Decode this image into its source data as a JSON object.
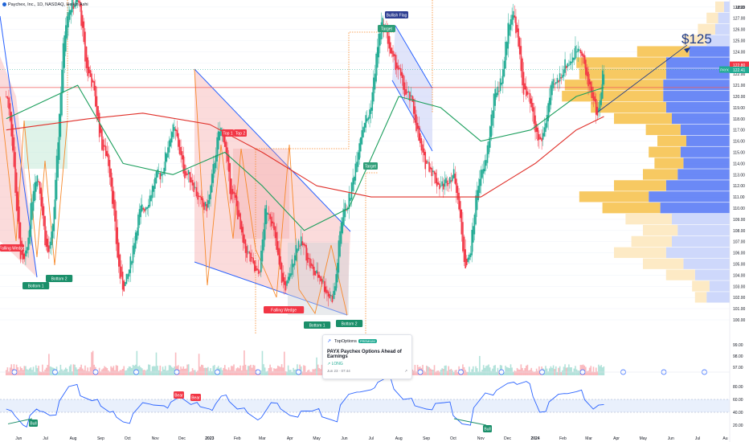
{
  "header": {
    "symbol_title": "Paychex, Inc., 1D, NASDAQ, Heikin Ashi"
  },
  "currency": "USD",
  "price_axis": {
    "labels": [
      "128.00",
      "127.00",
      "126.00",
      "125.00",
      "124.00",
      "123.00",
      "122.00",
      "121.00",
      "120.00",
      "119.00",
      "118.00",
      "117.00",
      "116.00",
      "115.00",
      "114.00",
      "113.00",
      "112.00",
      "111.00",
      "110.00",
      "109.00",
      "108.00",
      "107.00",
      "106.00",
      "105.00",
      "104.00",
      "103.00",
      "102.00",
      "101.00",
      "100.00"
    ],
    "rsi_labels": [
      "99.00",
      "98.00",
      "97.00"
    ],
    "osc_labels": [
      "80.00",
      "60.00",
      "40.00",
      "20.00"
    ],
    "last_price_tag": "122.41",
    "symbol_tag": "PAYX",
    "high_tag": "122.80"
  },
  "time_axis": [
    "Jun",
    "Jul",
    "Aug",
    "Sep",
    "Oct",
    "Nov",
    "Dec",
    "2023",
    "Feb",
    "Mar",
    "Apr",
    "May",
    "Jun",
    "Jul",
    "Aug",
    "Sep",
    "Oct",
    "Nov",
    "Dec",
    "2024",
    "Feb",
    "Mar",
    "Apr",
    "May",
    "Jun",
    "Jul",
    "Au"
  ],
  "annotations": {
    "target_price": "$125",
    "falling_wedge_left": "Falling Wedge",
    "falling_wedge_center": "Falling Wedge",
    "bottom1_left": "Bottom 1",
    "bottom2_left": "Bottom 2",
    "top1": "Top 1",
    "top2": "Top 2",
    "bottom1_center": "Bottom 1",
    "bottom2_center": "Bottom 2",
    "target_top": "Target",
    "target_mid": "Target",
    "bullish_flag": "Bullish Flag",
    "osc_bull_left": "Bull",
    "osc_bear_1": "Bear",
    "osc_bear_2": "Bear",
    "osc_bull_right": "Bull"
  },
  "idea_card": {
    "brand": "TopOptions",
    "badge": "PREMIUM",
    "title": "PAYX Paychex Options Ahead of Earnings",
    "direction": "LONG",
    "date": "Jun 23",
    "time": "07:44"
  },
  "colors": {
    "bull": "#22ab94",
    "bear": "#f23645",
    "ma_green": "#1b9e5c",
    "ma_red": "#e0312b",
    "wedge_blue": "#2962ff",
    "zigzag": "#f7892b",
    "vp_up": "#f7c65a",
    "vp_down": "#5b7cf5",
    "rsi_line": "#2962ff"
  },
  "chart_data": {
    "type": "candlestick",
    "title": "Paychex, Inc., 1D, NASDAQ, Heikin Ashi",
    "y_range": [
      100,
      129
    ],
    "last_price": 122.41,
    "target": 125,
    "waypoints": [
      [
        "2022-06-01",
        120
      ],
      [
        "2022-06-20",
        105
      ],
      [
        "2022-07-05",
        113
      ],
      [
        "2022-07-18",
        106
      ],
      [
        "2022-08-10",
        128
      ],
      [
        "2022-08-20",
        128.5
      ],
      [
        "2022-09-01",
        122
      ],
      [
        "2022-09-20",
        115
      ],
      [
        "2022-10-10",
        103
      ],
      [
        "2022-11-01",
        110
      ],
      [
        "2022-11-20",
        113
      ],
      [
        "2022-12-05",
        117
      ],
      [
        "2022-12-20",
        113
      ],
      [
        "2023-01-10",
        110
      ],
      [
        "2023-01-28",
        117
      ],
      [
        "2023-02-10",
        111
      ],
      [
        "2023-02-25",
        106
      ],
      [
        "2023-03-10",
        104
      ],
      [
        "2023-03-20",
        110
      ],
      [
        "2023-04-10",
        103
      ],
      [
        "2023-04-25",
        107
      ],
      [
        "2023-05-15",
        104
      ],
      [
        "2023-06-01",
        102
      ],
      [
        "2023-06-15",
        110
      ],
      [
        "2023-07-10",
        118
      ],
      [
        "2023-07-28",
        126.5
      ],
      [
        "2023-08-10",
        123
      ],
      [
        "2023-08-25",
        120
      ],
      [
        "2023-09-15",
        114
      ],
      [
        "2023-10-01",
        112
      ],
      [
        "2023-10-15",
        113
      ],
      [
        "2023-10-30",
        105
      ],
      [
        "2023-11-15",
        113
      ],
      [
        "2023-12-05",
        121
      ],
      [
        "2023-12-20",
        127.5
      ],
      [
        "2024-01-05",
        120
      ],
      [
        "2024-01-20",
        116
      ],
      [
        "2024-02-05",
        121
      ],
      [
        "2024-02-20",
        123
      ],
      [
        "2024-03-05",
        124.5
      ],
      [
        "2024-03-15",
        121
      ],
      [
        "2024-03-25",
        118.5
      ],
      [
        "2024-04-01",
        122.4
      ]
    ],
    "moving_averages": [
      {
        "color": "green",
        "points": [
          [
            "2022-06-01",
            118
          ],
          [
            "2022-08-20",
            121
          ],
          [
            "2022-10-10",
            114
          ],
          [
            "2022-12-05",
            113
          ],
          [
            "2023-02-01",
            115
          ],
          [
            "2023-03-15",
            112
          ],
          [
            "2023-05-01",
            108
          ],
          [
            "2023-06-20",
            110
          ],
          [
            "2023-08-15",
            120
          ],
          [
            "2023-10-01",
            119
          ],
          [
            "2023-11-15",
            116
          ],
          [
            "2024-01-10",
            117
          ],
          [
            "2024-03-01",
            120
          ],
          [
            "2024-04-01",
            120.8
          ]
        ]
      },
      {
        "color": "red",
        "points": [
          [
            "2022-06-01",
            117
          ],
          [
            "2022-09-01",
            118
          ],
          [
            "2022-11-01",
            118.5
          ],
          [
            "2023-01-15",
            117.5
          ],
          [
            "2023-03-15",
            115
          ],
          [
            "2023-05-15",
            112
          ],
          [
            "2023-07-15",
            111
          ],
          [
            "2023-09-15",
            111
          ],
          [
            "2023-11-15",
            111
          ],
          [
            "2024-01-15",
            114
          ],
          [
            "2024-03-01",
            117
          ],
          [
            "2024-04-01",
            118.2
          ]
        ]
      }
    ],
    "volume_profile": [
      {
        "price": 102,
        "up": 20,
        "down": 40
      },
      {
        "price": 103,
        "up": 30,
        "down": 35
      },
      {
        "price": 104,
        "up": 50,
        "down": 60
      },
      {
        "price": 105,
        "up": 70,
        "down": 80
      },
      {
        "price": 106,
        "up": 90,
        "down": 110
      },
      {
        "price": 107,
        "up": 70,
        "down": 100
      },
      {
        "price": 108,
        "up": 60,
        "down": 90
      },
      {
        "price": 109,
        "up": 80,
        "down": 100
      },
      {
        "price": 110,
        "up": 100,
        "down": 120
      },
      {
        "price": 111,
        "up": 120,
        "down": 140
      },
      {
        "price": 112,
        "up": 90,
        "down": 110
      },
      {
        "price": 113,
        "up": 60,
        "down": 90
      },
      {
        "price": 114,
        "up": 50,
        "down": 80
      },
      {
        "price": 115,
        "up": 55,
        "down": 85
      },
      {
        "price": 116,
        "up": 50,
        "down": 75
      },
      {
        "price": 117,
        "up": 60,
        "down": 85
      },
      {
        "price": 118,
        "up": 100,
        "down": 100
      },
      {
        "price": 119,
        "up": 130,
        "down": 110
      },
      {
        "price": 120,
        "up": 175,
        "down": 115
      },
      {
        "price": 121,
        "up": 170,
        "down": 115
      },
      {
        "price": 122,
        "up": 150,
        "down": 110
      },
      {
        "price": 123,
        "up": 155,
        "down": 110
      },
      {
        "price": 124,
        "up": 90,
        "down": 70
      },
      {
        "price": 125,
        "up": 40,
        "down": 40
      },
      {
        "price": 126,
        "up": 30,
        "down": 25
      },
      {
        "price": 127,
        "up": 20,
        "down": 20
      },
      {
        "price": 128,
        "up": 15,
        "down": 10
      }
    ],
    "oscillator": {
      "range": [
        0,
        100
      ],
      "levels": [
        40,
        60
      ],
      "points": [
        [
          "2022-06-01",
          45
        ],
        [
          "2022-06-20",
          20
        ],
        [
          "2022-07-05",
          45
        ],
        [
          "2022-07-20",
          35
        ],
        [
          "2022-08-10",
          80
        ],
        [
          "2022-09-05",
          58
        ],
        [
          "2022-09-25",
          40
        ],
        [
          "2022-10-10",
          25
        ],
        [
          "2022-11-01",
          55
        ],
        [
          "2022-11-25",
          50
        ],
        [
          "2022-12-10",
          62
        ],
        [
          "2022-12-25",
          52
        ],
        [
          "2023-01-15",
          45
        ],
        [
          "2023-01-28",
          65
        ],
        [
          "2023-02-15",
          45
        ],
        [
          "2023-03-10",
          28
        ],
        [
          "2023-03-25",
          55
        ],
        [
          "2023-04-15",
          35
        ],
        [
          "2023-05-10",
          42
        ],
        [
          "2023-06-01",
          28
        ],
        [
          "2023-06-20",
          68
        ],
        [
          "2023-07-15",
          75
        ],
        [
          "2023-07-30",
          92
        ],
        [
          "2023-08-20",
          60
        ],
        [
          "2023-09-15",
          45
        ],
        [
          "2023-10-05",
          55
        ],
        [
          "2023-10-25",
          22
        ],
        [
          "2023-11-20",
          70
        ],
        [
          "2023-12-15",
          85
        ],
        [
          "2024-01-05",
          88
        ],
        [
          "2024-01-20",
          40
        ],
        [
          "2024-02-10",
          68
        ],
        [
          "2024-03-01",
          72
        ],
        [
          "2024-03-20",
          45
        ],
        [
          "2024-04-01",
          52
        ]
      ]
    }
  }
}
